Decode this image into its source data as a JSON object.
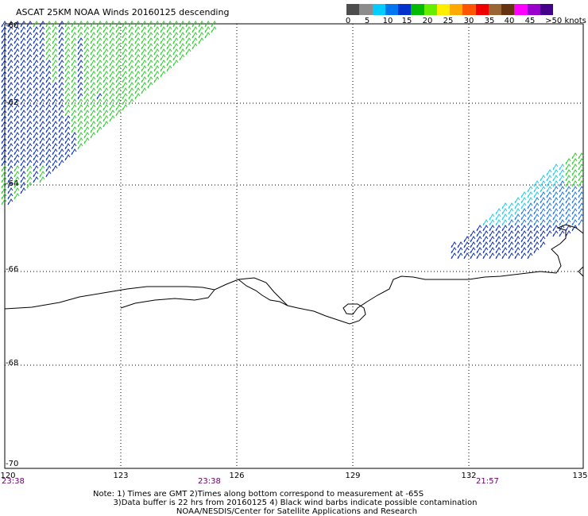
{
  "title": "ASCAT 25KM NOAA Winds 20160125 descending",
  "legend": {
    "colors": [
      "#4d4d4d",
      "#8c8c8c",
      "#00ccff",
      "#0077ee",
      "#0033cc",
      "#00bb00",
      "#66ee00",
      "#ffee00",
      "#ffaa00",
      "#ff5500",
      "#ee0000",
      "#996633",
      "#663311",
      "#ff00ff",
      "#9900cc",
      "#440088"
    ],
    "labels": [
      "0",
      "5",
      "10",
      "15",
      "20",
      "25",
      "30",
      "35",
      "40",
      "45",
      ">50 knots"
    ]
  },
  "lat_labels": [
    "-60",
    "-62",
    "-64",
    "-66",
    "-68",
    "-70"
  ],
  "lon_labels": [
    "120",
    "123",
    "126",
    "129",
    "132",
    "135"
  ],
  "time_labels": [
    "23:38",
    "23:38",
    "21:57"
  ],
  "notes": {
    "line1": "Note: 1) Times are GMT 2)Times along bottom correspond to measurement at -65S",
    "line2": "3)Data buffer is 22 hrs from 20160125 4) Black wind barbs indicate possible contamination",
    "line3": "NOAA/NESDIS/Center for Satellite Applications and Research"
  },
  "barb_colors": {
    "green": "#33cc33",
    "blue": "#1133bb",
    "mid_blue": "#2277ee",
    "cyan": "#22ccee"
  }
}
